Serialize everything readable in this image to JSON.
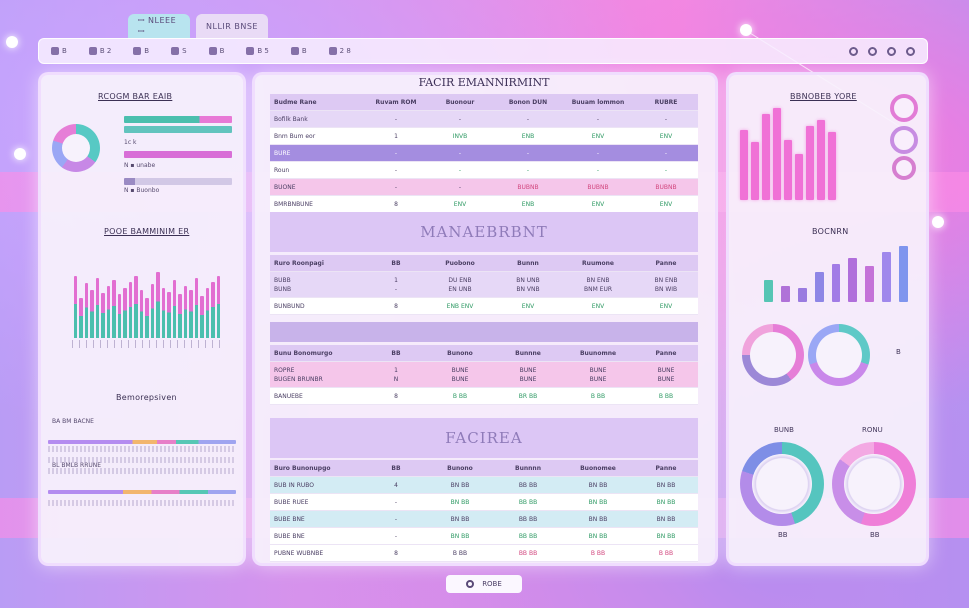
{
  "tabs": [
    {
      "label": "ꟷ NLEEE ꟷ"
    },
    {
      "label": "NLLIR BNSE"
    }
  ],
  "toolbar": {
    "items": [
      "B",
      "B 2",
      "B",
      "S",
      "B",
      "B 5",
      "B",
      "2 8"
    ]
  },
  "left_panel": {
    "title": "RCOGM BAR EAIB",
    "legend_1": "1c k",
    "legend_2": "N ▪ unabe",
    "legend_3": "N ▪ Buonbo",
    "chart_title": "POOE BAMMINIM ER",
    "yaxis_labels": [
      "",
      "",
      "",
      "",
      "",
      "",
      "",
      ""
    ],
    "section_title": "Bemorepsiven",
    "row_label_1": "BA BM BACNE",
    "row_label_2": "BL BMLB RRUNE"
  },
  "center": {
    "title": "FACIR EMANNIRMINT",
    "section_1": "MANAEBRBNT",
    "section_2": "FACIREA",
    "table1": {
      "headers": [
        "Budme Rane",
        "Ruvam ROM",
        "Buonour",
        "Bonon DUN",
        "Buuam lommon",
        "RUBRE"
      ],
      "rows": [
        [
          "Bofilk Bank",
          "-",
          "-",
          "-",
          "-",
          "-"
        ],
        [
          "Bnm Bum eor",
          "1",
          "INVB",
          "ENB",
          "ENV",
          "ENV"
        ],
        [
          "BURE",
          "-",
          "-",
          "-",
          "-",
          "-"
        ],
        [
          "Roun",
          "-",
          "-",
          "-",
          "-",
          "-"
        ],
        [
          "BUONE",
          "-",
          "-",
          "BUBNB",
          "BUBNB",
          "BUBNB"
        ],
        [
          "BMRBNBUNE",
          "8",
          "ENV",
          "ENB",
          "ENV",
          "ENV"
        ]
      ]
    },
    "table2": {
      "headers": [
        "Ruro Roonpagi",
        "BB",
        "Puobono",
        "Bunnn",
        "Ruumone",
        "Panne"
      ],
      "rows": [
        [
          "BUBB\nBUNB",
          "1\n-",
          "DU ENB\nEN UNB",
          "BN UNB\nBN VNB",
          "BN ENB\nBNM EUR",
          "BN ENB\nBN WIB"
        ],
        [
          "BUNBUND",
          "8",
          "ENB ENV",
          "ENV",
          "ENV",
          "ENV"
        ]
      ]
    },
    "table3": {
      "headers": [
        "Bunu Bonomurgo",
        "BB",
        "Bunono",
        "Bunnne",
        "Buunomne",
        "Panne"
      ],
      "rows": [
        [
          "ROPRE\nBUGEN BRUNBR",
          "1\nN",
          "BUNE\nBUNE",
          "BUNE\nBUNE",
          "BUNE\nBUNE",
          "BUNE\nBUNE"
        ],
        [
          "BANUEBE",
          "8",
          "B BB",
          "BR BB",
          "B BB",
          "B BB"
        ]
      ]
    },
    "table4": {
      "headers": [
        "Buro Bunonupgo",
        "BB",
        "Bunono",
        "Bunnnn",
        "Buonomee",
        "Panne"
      ],
      "rows": [
        [
          "BUB IN RUBO",
          "4",
          "BN BB",
          "BB BB",
          "BN BB",
          "BN BB"
        ],
        [
          "BUBE RUEE",
          "-",
          "BN BB",
          "BB BB",
          "BN BB",
          "BN BB"
        ],
        [
          "BUBE BNE",
          "-",
          "BN BB",
          "BB BB",
          "BN BB",
          "BN BB"
        ],
        [
          "BUBE BNE",
          "-",
          "BN BB",
          "BB BB",
          "BN BB",
          "BN BB"
        ],
        [
          "PUBNE WUBNBE",
          "8",
          "B BB",
          "BB BB",
          "B BB",
          "B BB"
        ]
      ]
    }
  },
  "right_panel": {
    "title": "BBNOBEB YORE",
    "chart2_title": "BOCNRN",
    "ring_label_1": "BUNB",
    "ring_label_2": "RONU",
    "ring_value_1": "BB",
    "ring_value_2": "BB",
    "side_value": "B"
  },
  "bottom": {
    "label": "ROBE"
  },
  "colors": {
    "accent_pink": "#f071d6",
    "accent_teal": "#4bbfae",
    "accent_purple": "#a48de0"
  }
}
